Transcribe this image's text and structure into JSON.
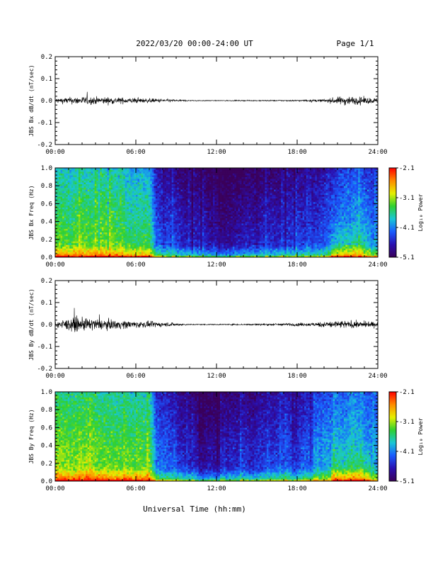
{
  "header": {
    "date_range": "2022/03/20  00:00-24:00 UT",
    "page": "Page 1/1"
  },
  "x_axis_label": "Universal Time (hh:mm)",
  "x_ticks": [
    "00:00",
    "06:00",
    "12:00",
    "18:00",
    "24:00"
  ],
  "colors": {
    "colormap": [
      "#3a005a",
      "#2a10b0",
      "#1a5cff",
      "#19c7d6",
      "#2fd030",
      "#e6f000",
      "#ff8a00",
      "#ff0000"
    ]
  },
  "chart_data": [
    {
      "type": "line",
      "title": "",
      "ylabel": "JBS Bx dB/dt (nT/sec)",
      "xlabel": "",
      "xlim": [
        "00:00",
        "24:00"
      ],
      "ylim": [
        -0.2,
        0.2
      ],
      "y_ticks": [
        "0.2",
        "0.1",
        "0.0",
        "-0.1",
        "-0.2"
      ],
      "series": [
        {
          "description": "noisy dB/dt trace",
          "amplitude_envelope": [
            {
              "x": "00:00",
              "amp": 0.022
            },
            {
              "x": "02:00",
              "amp": 0.035
            },
            {
              "x": "04:00",
              "amp": 0.03
            },
            {
              "x": "06:00",
              "amp": 0.022
            },
            {
              "x": "08:00",
              "amp": 0.015
            },
            {
              "x": "10:00",
              "amp": 0.004
            },
            {
              "x": "12:00",
              "amp": 0.003
            },
            {
              "x": "15:00",
              "amp": 0.004
            },
            {
              "x": "18:00",
              "amp": 0.006
            },
            {
              "x": "20:00",
              "amp": 0.012
            },
            {
              "x": "21:30",
              "amp": 0.04
            },
            {
              "x": "24:00",
              "amp": 0.022
            }
          ]
        }
      ]
    },
    {
      "type": "heatmap",
      "title": "",
      "ylabel": "JBS Bx Freq (Hz)",
      "xlim": [
        "00:00",
        "24:00"
      ],
      "ylim": [
        0.0,
        1.0
      ],
      "y_ticks": [
        "1.0",
        "0.8",
        "0.6",
        "0.4",
        "0.2",
        "0.0"
      ],
      "colorbar": {
        "label": "Log₁₀ Power",
        "min": -5.1,
        "max": -2.1,
        "ticks": [
          "-2.1",
          "-3.1",
          "-4.1",
          "-5.1"
        ]
      },
      "activity_profile": [
        {
          "x": "00:00",
          "level": 0.62
        },
        {
          "x": "03:00",
          "level": 0.62
        },
        {
          "x": "07:00",
          "level": 0.58
        },
        {
          "x": "07:30",
          "level": 0.32
        },
        {
          "x": "10:00",
          "level": 0.18
        },
        {
          "x": "12:00",
          "level": 0.14
        },
        {
          "x": "15:00",
          "level": 0.2
        },
        {
          "x": "18:00",
          "level": 0.22
        },
        {
          "x": "21:00",
          "level": 0.38
        },
        {
          "x": "22:00",
          "level": 0.45
        },
        {
          "x": "24:00",
          "level": 0.35
        }
      ]
    },
    {
      "type": "line",
      "title": "",
      "ylabel": "JBS By dB/dt (nT/sec)",
      "xlabel": "",
      "xlim": [
        "00:00",
        "24:00"
      ],
      "ylim": [
        -0.2,
        0.2
      ],
      "y_ticks": [
        "0.2",
        "0.1",
        "0.0",
        "-0.1",
        "-0.2"
      ],
      "series": [
        {
          "description": "noisy dB/dt trace",
          "amplitude_envelope": [
            {
              "x": "00:00",
              "amp": 0.03
            },
            {
              "x": "01:30",
              "amp": 0.06
            },
            {
              "x": "03:30",
              "amp": 0.045
            },
            {
              "x": "06:00",
              "amp": 0.03
            },
            {
              "x": "08:00",
              "amp": 0.02
            },
            {
              "x": "10:00",
              "amp": 0.005
            },
            {
              "x": "12:00",
              "amp": 0.004
            },
            {
              "x": "15:00",
              "amp": 0.008
            },
            {
              "x": "17:00",
              "amp": 0.012
            },
            {
              "x": "19:00",
              "amp": 0.015
            },
            {
              "x": "21:00",
              "amp": 0.035
            },
            {
              "x": "24:00",
              "amp": 0.022
            }
          ]
        }
      ]
    },
    {
      "type": "heatmap",
      "title": "",
      "ylabel": "JBS By Freq (Hz)",
      "xlim": [
        "00:00",
        "24:00"
      ],
      "ylim": [
        0.0,
        1.0
      ],
      "y_ticks": [
        "1.0",
        "0.8",
        "0.6",
        "0.4",
        "0.2",
        "0.0"
      ],
      "colorbar": {
        "label": "Log₁₀ Power",
        "min": -5.1,
        "max": -2.1,
        "ticks": [
          "-2.1",
          "-3.1",
          "-4.1",
          "-5.1"
        ]
      },
      "activity_profile": [
        {
          "x": "00:00",
          "level": 0.7
        },
        {
          "x": "03:00",
          "level": 0.66
        },
        {
          "x": "07:00",
          "level": 0.62
        },
        {
          "x": "07:30",
          "level": 0.4
        },
        {
          "x": "10:00",
          "level": 0.2
        },
        {
          "x": "12:00",
          "level": 0.17
        },
        {
          "x": "15:00",
          "level": 0.26
        },
        {
          "x": "18:00",
          "level": 0.3
        },
        {
          "x": "21:00",
          "level": 0.45
        },
        {
          "x": "22:00",
          "level": 0.52
        },
        {
          "x": "24:00",
          "level": 0.4
        }
      ]
    }
  ]
}
